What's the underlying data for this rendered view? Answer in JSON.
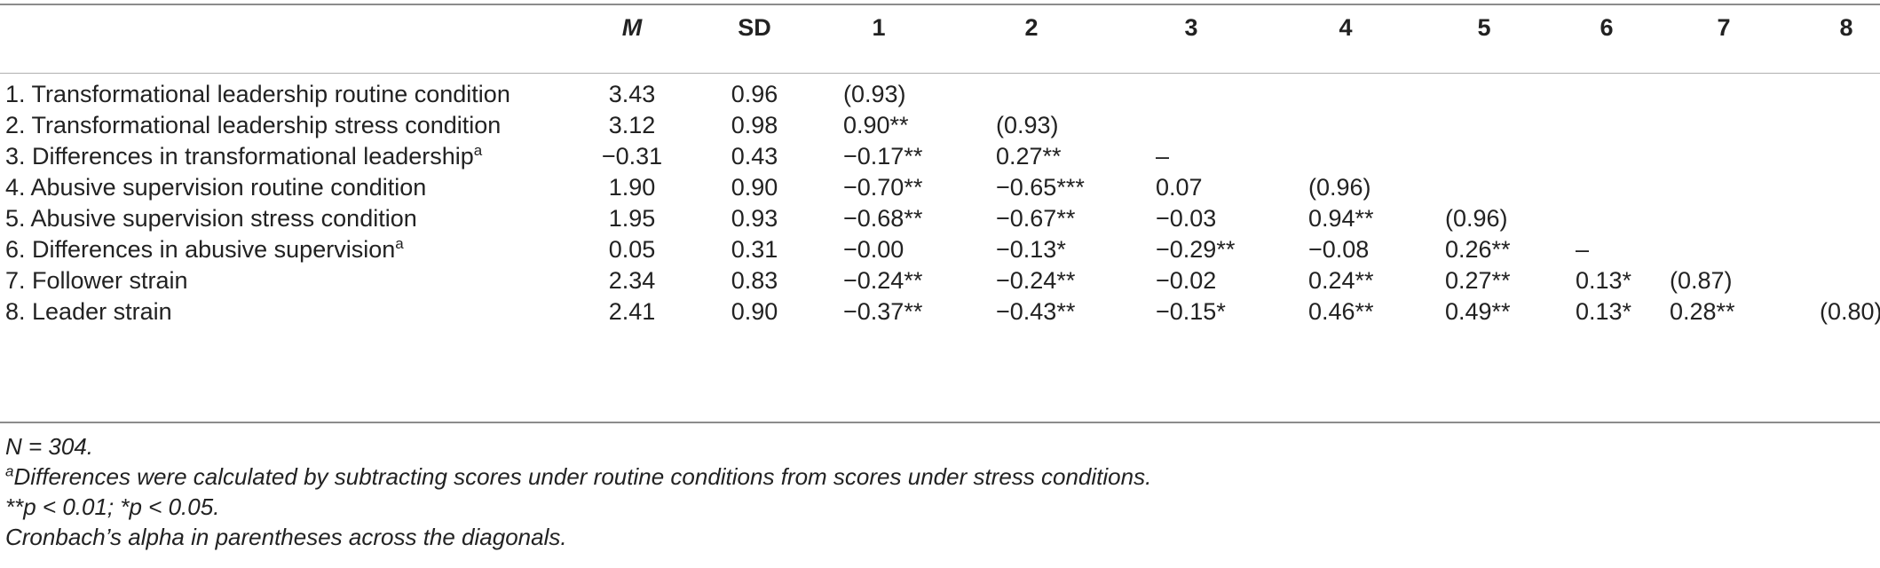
{
  "table": {
    "headers": {
      "label": "",
      "m": "M",
      "sd": "SD",
      "c1": "1",
      "c2": "2",
      "c3": "3",
      "c4": "4",
      "c5": "5",
      "c6": "6",
      "c7": "7",
      "c8": "8"
    },
    "rows": [
      {
        "label": "1. Transformational leadership routine condition",
        "sup": "",
        "m": "3.43",
        "sd": "0.96",
        "c1": "(0.93)",
        "c2": "",
        "c3": "",
        "c4": "",
        "c5": "",
        "c6": "",
        "c7": "",
        "c8": ""
      },
      {
        "label": "2. Transformational leadership stress condition",
        "sup": "",
        "m": "3.12",
        "sd": "0.98",
        "c1": "0.90**",
        "c2": "(0.93)",
        "c3": "",
        "c4": "",
        "c5": "",
        "c6": "",
        "c7": "",
        "c8": ""
      },
      {
        "label": "3. Differences in transformational leadership",
        "sup": "a",
        "m": "−0.31",
        "sd": "0.43",
        "c1": "−0.17**",
        "c2": "0.27**",
        "c3": "–",
        "c4": "",
        "c5": "",
        "c6": "",
        "c7": "",
        "c8": ""
      },
      {
        "label": "4. Abusive supervision routine condition",
        "sup": "",
        "m": "1.90",
        "sd": "0.90",
        "c1": "−0.70**",
        "c2": "−0.65***",
        "c3": "0.07",
        "c4": "(0.96)",
        "c5": "",
        "c6": "",
        "c7": "",
        "c8": ""
      },
      {
        "label": "5. Abusive supervision stress condition",
        "sup": "",
        "m": "1.95",
        "sd": "0.93",
        "c1": "−0.68**",
        "c2": "−0.67**",
        "c3": "−0.03",
        "c4": "0.94**",
        "c5": "(0.96)",
        "c6": "",
        "c7": "",
        "c8": ""
      },
      {
        "label": "6. Differences in abusive supervision",
        "sup": "a",
        "m": "0.05",
        "sd": "0.31",
        "c1": "−0.00",
        "c2": "−0.13*",
        "c3": "−0.29**",
        "c4": "−0.08",
        "c5": "0.26**",
        "c6": "–",
        "c7": "",
        "c8": ""
      },
      {
        "label": "7. Follower strain",
        "sup": "",
        "m": "2.34",
        "sd": "0.83",
        "c1": "−0.24**",
        "c2": "−0.24**",
        "c3": "−0.02",
        "c4": "0.24**",
        "c5": "0.27**",
        "c6": "0.13*",
        "c7": "(0.87)",
        "c8": ""
      },
      {
        "label": "8. Leader strain",
        "sup": "",
        "m": "2.41",
        "sd": "0.90",
        "c1": "−0.37**",
        "c2": "−0.43**",
        "c3": "−0.15*",
        "c4": "0.46**",
        "c5": "0.49**",
        "c6": "0.13*",
        "c7": "0.28**",
        "c8": "(0.80)"
      }
    ]
  },
  "notes": {
    "n": "N = 304.",
    "footnote_a_marker": "a",
    "footnote_a": "Differences were calculated by subtracting scores under routine conditions from scores under stress conditions.",
    "significance": "**p < 0.01; *p < 0.05.",
    "alpha": "Cronbach’s alpha in parentheses across the diagonals."
  }
}
